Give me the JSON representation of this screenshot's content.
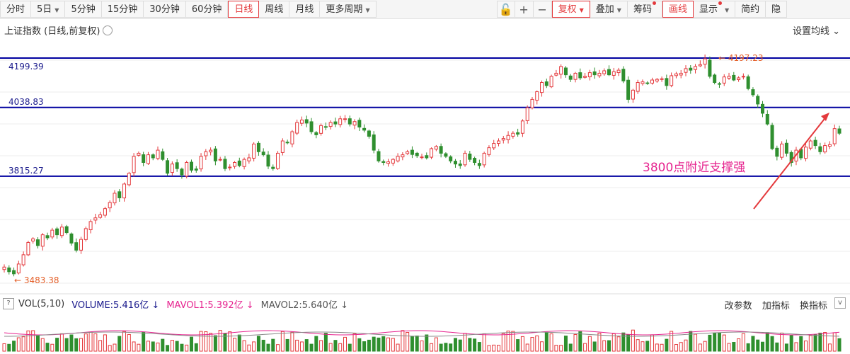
{
  "toolbar": {
    "tabs": [
      {
        "label": "分时",
        "caret": false,
        "active": false
      },
      {
        "label": "5日",
        "caret": true,
        "active": false
      },
      {
        "label": "5分钟",
        "caret": false,
        "active": false
      },
      {
        "label": "15分钟",
        "caret": false,
        "active": false
      },
      {
        "label": "30分钟",
        "caret": false,
        "active": false
      },
      {
        "label": "60分钟",
        "caret": false,
        "active": false
      },
      {
        "label": "日线",
        "caret": false,
        "active": true
      },
      {
        "label": "周线",
        "caret": false,
        "active": false
      },
      {
        "label": "月线",
        "caret": false,
        "active": false
      },
      {
        "label": "更多周期",
        "caret": true,
        "active": false
      }
    ],
    "right_tabs": [
      {
        "label": "复权",
        "caret": true,
        "active": true,
        "dot": false
      },
      {
        "label": "叠加",
        "caret": true,
        "active": false,
        "dot": false
      },
      {
        "label": "筹码",
        "caret": false,
        "active": false,
        "dot": true
      },
      {
        "label": "画线",
        "caret": false,
        "active": true,
        "dot": false
      },
      {
        "label": "显示",
        "caret": true,
        "active": false,
        "dot": true
      },
      {
        "label": "简约",
        "caret": false,
        "active": false,
        "dot": false
      },
      {
        "label": "隐",
        "caret": false,
        "active": false,
        "dot": false
      }
    ]
  },
  "chart_title": "上证指数 (日线,前复权)",
  "set_ma_label": "设置均线",
  "chart_data": {
    "type": "candlestick",
    "title": "上证指数 (日线,前复权)",
    "ylim": [
      3440,
      4250
    ],
    "horizontal_lines": [
      4199.39,
      4038.83,
      3815.27
    ],
    "horizontal_labels": [
      "4199.39",
      "4038.83",
      "3815.27"
    ],
    "high_label": "← 4197.23",
    "low_label": "← 3483.38",
    "annotation": "3800点附近支撑强",
    "closes": [
      3520,
      3505,
      3498,
      3530,
      3560,
      3600,
      3612,
      3590,
      3625,
      3615,
      3640,
      3625,
      3650,
      3632,
      3598,
      3575,
      3610,
      3645,
      3668,
      3680,
      3690,
      3710,
      3730,
      3760,
      3745,
      3790,
      3825,
      3880,
      3890,
      3860,
      3885,
      3875,
      3900,
      3870,
      3825,
      3855,
      3840,
      3820,
      3860,
      3835,
      3835,
      3880,
      3895,
      3900,
      3865,
      3870,
      3840,
      3845,
      3860,
      3850,
      3870,
      3875,
      3920,
      3895,
      3885,
      3848,
      3840,
      3890,
      3930,
      3925,
      3960,
      3990,
      3998,
      3988,
      3960,
      3950,
      3980,
      3975,
      3990,
      3985,
      4002,
      4002,
      3985,
      3993,
      3975,
      3965,
      3945,
      3900,
      3865,
      3860,
      3862,
      3870,
      3880,
      3885,
      3895,
      3886,
      3882,
      3878,
      3875,
      3905,
      3912,
      3890,
      3880,
      3865,
      3855,
      3850,
      3890,
      3870,
      3860,
      3850,
      3890,
      3908,
      3922,
      3930,
      3938,
      3948,
      3955,
      3952,
      3995,
      4038,
      4065,
      4090,
      4120,
      4110,
      4140,
      4150,
      4172,
      4145,
      4130,
      4150,
      4135,
      4140,
      4152,
      4145,
      4150,
      4158,
      4145,
      4155,
      4160,
      4125,
      4065,
      4095,
      4120,
      4122,
      4118,
      4128,
      4130,
      4132,
      4110,
      4142,
      4148,
      4150,
      4165,
      4160,
      4172,
      4178,
      4197,
      4140,
      4120,
      4115,
      4138,
      4140,
      4128,
      4135,
      4140,
      4100,
      4080,
      4050,
      4020,
      3985,
      3905,
      3880,
      3920,
      3890,
      3860,
      3900,
      3875,
      3910,
      3930,
      3915,
      3895,
      3915,
      3918,
      3970,
      3955
    ]
  },
  "volume_indicator": {
    "name": "VOL(5,10)",
    "volume": "VOLUME:5.416亿",
    "mavol1": "MAVOL1:5.392亿",
    "mavol2": "MAVOL2:5.640亿",
    "buttons": [
      "改参数",
      "加指标",
      "换指标"
    ],
    "question": "?",
    "toggle": "v"
  },
  "colors": {
    "up": "#e4393c",
    "down": "#2f8f2f",
    "line": "#0000a0",
    "ma1": "#e6248f",
    "ma2": "#888888",
    "accent": "#e4393c"
  }
}
